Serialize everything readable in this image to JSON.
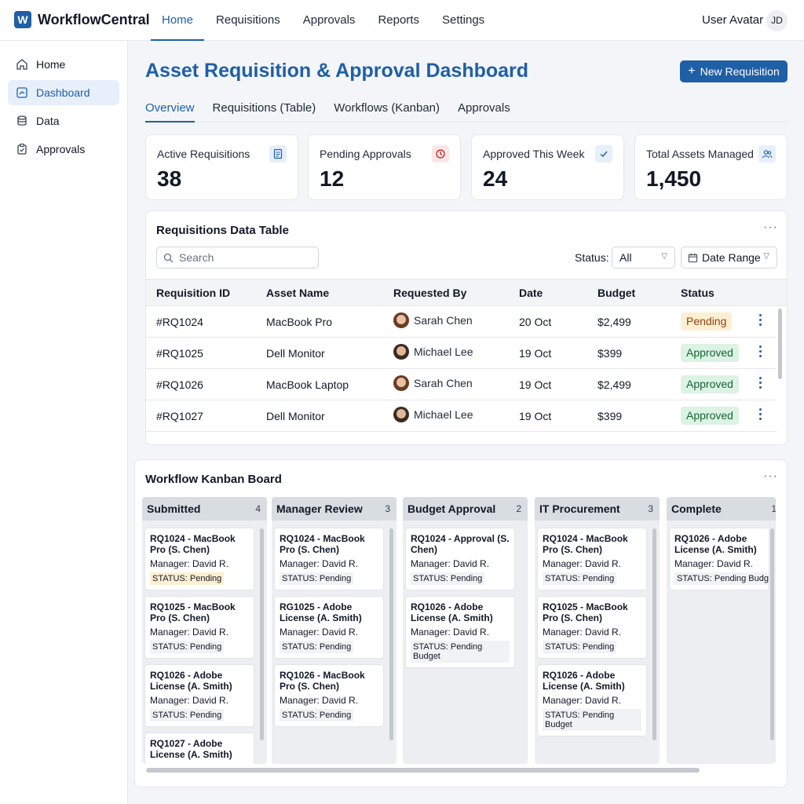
{
  "app": {
    "logo_letter": "W",
    "name": "WorkflowCentral"
  },
  "topnav": [
    "Home",
    "Requisitions",
    "Approvals",
    "Reports",
    "Settings"
  ],
  "user": {
    "label": "User Avatar",
    "initials": "JD"
  },
  "sidebar": [
    {
      "label": "Home",
      "icon": "home-icon"
    },
    {
      "label": "Dashboard",
      "icon": "dashboard-icon"
    },
    {
      "label": "Data",
      "icon": "database-icon"
    },
    {
      "label": "Approvals",
      "icon": "clipboard-icon"
    }
  ],
  "page": {
    "title": "Asset Requisition & Approval Dashboard",
    "new_button": "New Requisition"
  },
  "tabs": [
    "Overview",
    "Requisitions (Table)",
    "Workflows (Kanban)",
    "Approvals"
  ],
  "stats": [
    {
      "label": "Active Requisitions",
      "value": "38",
      "icon": "document-icon",
      "color": "#1f5fa6"
    },
    {
      "label": "Pending Approvals",
      "value": "12",
      "icon": "clock-icon",
      "color": "#b91c1c"
    },
    {
      "label": "Approved This Week",
      "value": "24",
      "icon": "check-icon",
      "color": "#1f5fa6"
    },
    {
      "label": "Total Assets Managed",
      "value": "1,450",
      "icon": "users-icon",
      "color": "#1f5fa6"
    }
  ],
  "table": {
    "title": "Requisitions Data Table",
    "search_placeholder": "Search",
    "status_label": "Status:",
    "status_value": "All",
    "date_range": "Date Range",
    "columns": [
      "Requisition ID",
      "Asset Name",
      "Requested By",
      "Date",
      "Budget",
      "Status"
    ],
    "rows": [
      {
        "id": "#RQ1024",
        "asset": "MacBook Pro",
        "by": "Sarah Chen",
        "date": "20 Oct",
        "budget": "$2,499",
        "status": "Pending"
      },
      {
        "id": "#RQ1025",
        "asset": "Dell Monitor",
        "by": "Michael Lee",
        "date": "19 Oct",
        "budget": "$399",
        "status": "Approved"
      },
      {
        "id": "#RQ1026",
        "asset": "MacBook Laptop",
        "by": "Sarah Chen",
        "date": "19 Oct",
        "budget": "$2,499",
        "status": "Approved"
      },
      {
        "id": "#RQ1027",
        "asset": "Dell Monitor",
        "by": "Michael Lee",
        "date": "19 Oct",
        "budget": "$399",
        "status": "Approved"
      }
    ]
  },
  "kanban": {
    "title": "Workflow Kanban Board",
    "columns": [
      {
        "name": "Submitted",
        "count": "4",
        "cards": [
          {
            "title": "RQ1024 - MacBook Pro (S. Chen)",
            "manager": "Manager: David R.",
            "status": "STATUS: Pending",
            "warn": true
          },
          {
            "title": "RQ1025 - MacBook Pro (S. Chen)",
            "manager": "Manager: David R.",
            "status": "STATUS: Pending"
          },
          {
            "title": "RQ1026 - Adobe License (A. Smith)",
            "manager": "Manager: David R.",
            "status": "STATUS: Pending"
          },
          {
            "title": "RQ1027 - Adobe License (A. Smith)",
            "manager": "",
            "status": ""
          }
        ]
      },
      {
        "name": "Manager Review",
        "count": "3",
        "cards": [
          {
            "title": "RQ1024 - MacBook Pro (S. Chen)",
            "manager": "Manager: David R.",
            "status": "STATUS: Pending"
          },
          {
            "title": "RG1025 - Adobe License (A. Smith)",
            "manager": "Manager: David R.",
            "status": "STATUS: Pending"
          },
          {
            "title": "RQ1026 - MacBook Pro (S. Chen)",
            "manager": "Manager: David R.",
            "status": "STATUS: Pending"
          }
        ]
      },
      {
        "name": "Budget Approval",
        "count": "2",
        "cards": [
          {
            "title": "RQ1024 - Approval (S. Chen)",
            "manager": "Manager: David R.",
            "status": "STATUS: Pending"
          },
          {
            "title": "RQ1026 - Adobe License (A. Smith)",
            "manager": "Manager: David R.",
            "status": "STATUS: Pending Budget"
          }
        ]
      },
      {
        "name": "IT Procurement",
        "count": "3",
        "cards": [
          {
            "title": "RQ1024 - MacBook Pro (S. Chen)",
            "manager": "Manager: David R.",
            "status": "STATUS: Pending"
          },
          {
            "title": "RQ1025 - MacBook Pro (S. Chen)",
            "manager": "Manager: David R.",
            "status": "STATUS: Pending"
          },
          {
            "title": "RQ1026 - Adobe License (A. Smith)",
            "manager": "Manager: David R.",
            "status": "STATUS: Pending Budget"
          }
        ]
      },
      {
        "name": "Complete",
        "count": "1",
        "cards": [
          {
            "title": "RQ1026 - Adobe License (A. Smith)",
            "manager": "Manager: David R.",
            "status": "STATUS: Pending Budget"
          }
        ]
      }
    ]
  }
}
